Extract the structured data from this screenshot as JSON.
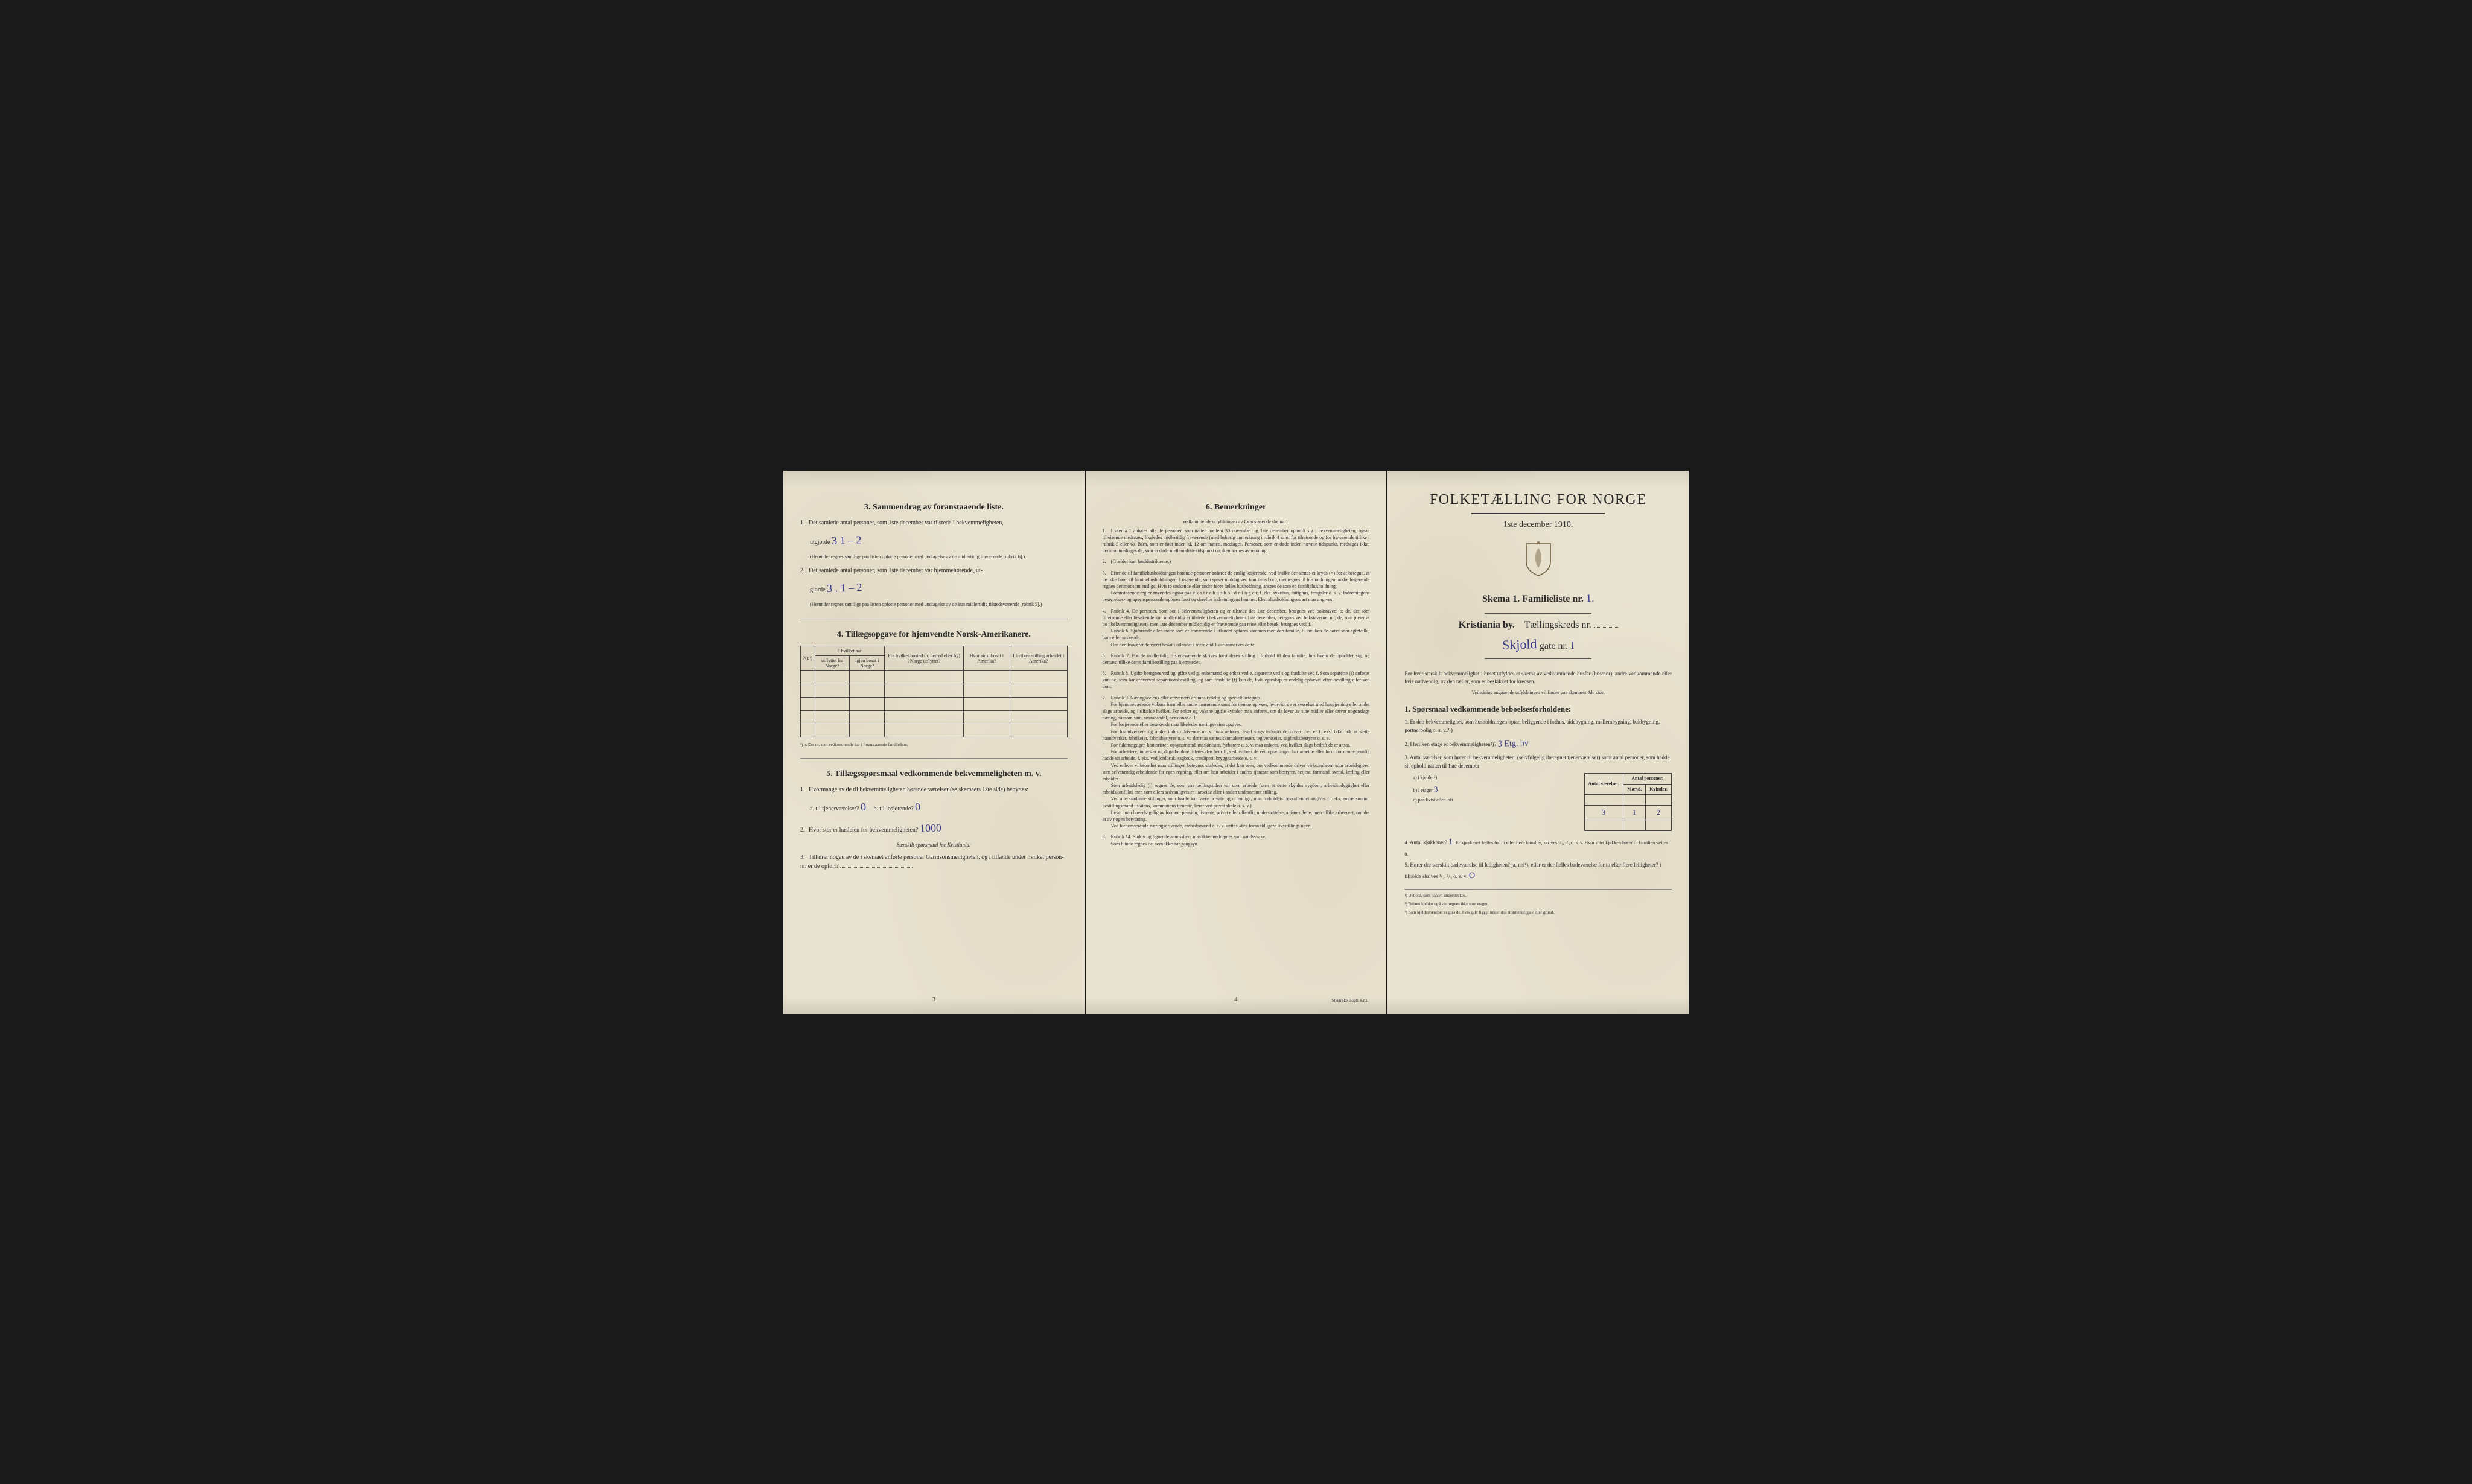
{
  "colors": {
    "paper": "#e8e2d0",
    "ink": "#2a2a2a",
    "handwriting": "#3a3a8a",
    "background": "#1a1a1a"
  },
  "page_left": {
    "section3": {
      "heading": "3.   Sammendrag av foranstaaende liste.",
      "q1": "Det samlede antal personer, som 1ste december var tilstede i bekvemmeligheten,",
      "q1_label": "utgjorde",
      "q1_value": "3        1 – 2",
      "q1_note": "(Herunder regnes samtlige paa listen opførte personer med undtagelse av de midlertidig fraværende [rubrik 6].)",
      "q2": "Det samlede antal personer, som 1ste december var hjemmehørende, ut-",
      "q2_label": "gjorde",
      "q2_value": "3 .        1 – 2",
      "q2_note": "(Herunder regnes samtlige paa listen opførte personer med undtagelse av de kun midlertidig tilstedeværende [rubrik 5].)"
    },
    "section4": {
      "heading": "4.   Tillægsopgave for hjemvendte Norsk-Amerikanere.",
      "cols": {
        "nr": "Nr.¹)",
        "group1": "I hvilket aar",
        "c1a": "utflyttet fra Norge?",
        "c1b": "igjen bosat i Norge?",
        "c2": "Fra hvilket bosted (ɔ: herred eller by) i Norge utflyttet?",
        "c3": "Hvor sidst bosat i Amerika?",
        "c4": "I hvilken stilling arbeidet i Amerika?"
      },
      "footnote": "¹) ɔ: Det nr. som vedkommende har i foranstaaende familieliste."
    },
    "section5": {
      "heading": "5.   Tillægsspørsmaal vedkommende bekvemmelig­heten m. v.",
      "q1": "Hvormange av de til bekvemmeligheten hørende værelser (se skemaets 1ste side) benyttes:",
      "q1a_label": "a. til tjenerværelser?",
      "q1a_value": "0",
      "q1b_label": "b. til losjerende?",
      "q1b_value": "0",
      "q2_label": "Hvor stor er husleien for bekvemmeligheten?",
      "q2_value": "1000",
      "sub_heading": "Særskilt spørsmaal for Kristiania:",
      "q3": "Tilhører nogen av de i skemaet anførte personer Garnisonsmenigheten, og i tilfælde under hvilket person-nr. er de opført?",
      "q3_value": ""
    },
    "page_number": "3"
  },
  "page_middle": {
    "heading": "6.   Bemerkninger",
    "subheading": "vedkommende utfyldningen av foranstaaende skema 1.",
    "items": [
      "I skema 1 anføres alle de personer, som natten mellem 30 november og 1ste december opholdt sig i bekvemmeligheten; ogsaa tilreisende medtages; likeledes midlertidig fraværende (med behørig anmerkning i rubrik 4 samt for tilreisende og for fraværende tillike i rubrik 5 eller 6). Barn, som er født inden kl. 12 om natten, medtages. Personer, som er døde inden nævnte tidspunkt, medtages ikke; derimot medtages de, som er døde mellem dette tidspunkt og skemaernes avhentning.",
      "(Gjælder kun landdistrikterne.)",
      "Efter de til familiehusholdningen hørende personer anføres de enslig losjerende, ved hvilke der sættes et kryds (×) for at betegne, at de ikke hører til familiehusholdningen. Losjerende, som spiser middag ved familiens bord, medregnes til husholdningen; andre losjerende regnes derimot som enslige. Hvis to søskende eller andre fører fælles husholdning, ansees de som en familiehusholdning.\n   Foranstaaende regler anvendes ogsaa paa e k s t r a h u s h o l d n i n g e r, f. eks. sykehus, fattighus, fængsler o. s. v. Indretningens bestyrelses- og opsynspersonale opføres først og derefter indretningens lemmer. Ekstrahusholdningens art maa angives.",
      "Rubrik 4. De personer, som bor i bekvemmeligheten og er tilstede der 1ste december, betegnes ved bokstaven: b; de, der som tilreisende eller besøkende kun midlertidig er tilstede i bekvemmeligheten 1ste december, betegnes ved bokstaverne: mt; de, som pleier at bo i bekvemmeligheten, men 1ste december midlertidig er fraværende paa reise eller besøk, betegnes ved: f.\n   Rubrik 6. Sjøfarende eller andre som er fraværende i utlandet opføres sammen med den familie, til hvilken de hører som egtefælle, barn eller søskende.\n   Har den fraværende været bosat i utlandet i mere end 1 aar anmerkes dette.",
      "Rubrik 7. For de midlertidig tilstedeværende skrives først deres stilling i forhold til den familie, hos hvem de opholder sig, og dernæst tillike deres familiestilling paa hjemstedet.",
      "Rubrik 8. Ugifte betegnes ved ug, gifte ved g, enkemænd og enker ved e, separerte ved s og fraskilte ved f. Som separerte (s) anføres kun de, som har erhvervet separationsbevilling, og som fraskilte (f) kun de, hvis egteskap er endelig ophævet efter bevilling eller ved dom.",
      "Rubrik 9. Næringsveiens eller erhvervets art maa tydelig og specielt betegnes.\n   For hjemmeværende voksne barn eller andre paarørende samt for tjenere oplyses, hvorvidt de er sysselsat med husgjerning eller andet slags arbeide, og i tilfælde hvilket. For enker og voksne ugifte kvinder maa anføres, om de lever av sine midler eller driver nogenslags næring, saasom søm, smaahandel, pensionat o. l.\n   For losjerende eller besøkende maa likeledes næringsveien opgives.\n   For haandverkere og andre industridrivende m. v. maa anføres, hvad slags industri de driver; det er f. eks. ikke nok at sætte haandverker, fabrikeier, fabrikbestyrer o. s. v.; der maa sættes skomakermester, teglverkseier, sagbruksbestyrer o. s. v.\n   For fuldmægtiger, kontorister, opsynsmænd, maskinister, fyrbøtere o. s. v. maa anføres, ved hvilket slags bedrift de er ansat.\n   For arbeidere, inderster og dagarbeidere tilføies den bedrift, ved hvilken de ved optællingen har arbeide eller forut for denne jevnlig hadde sit arbeide, f. eks. ved jordbruk, sagbruk, træsliperi, bryggearbeide o. s. v.\n   Ved enhver virksomhet maa stillingen betegnes saaledes, at det kan sees, om vedkommende driver virksomheten som arbeidsgiver, som selvstændig arbeidende for egen regning, eller om han arbeider i andres tjeneste som bestyrer, betjent, formand, svend, lærling eller arbeider.\n   Som arbeidsledig (l) regnes de, som paa tællingstiden var uten arbeide (uten at dette skyldes sygdom, arbeidsudygtighet eller arbeidskonflikt) men som ellers sedvanligvis er i arbeide eller i anden underordnet stilling.\n   Ved alle saadanne stillinger, som baade kan være private og offentlige, maa forholdets beskaffenhet angives (f. eks. embedsmand, bestillingsmand i statens, kommunens tjeneste, lærer ved privat skole o. s. v.).\n   Lever man hovedsagelig av formue, pension, livrente, privat eller offentlig understøttelse, anføres dette, men tillike erhvervet, om det er av nogen betydning.\n   Ved forhenværende næringsdrivende, embedsmænd o. s. v. sættes «fv» foran tidligere livsstillings navn.",
      "Rubrik 14. Sinker og lignende aandssløve maa ikke medregnes som aandssvake.\n   Som blinde regnes de, som ikke har gangsyn."
    ],
    "page_number": "4",
    "printer": "Steen'ske Bogtr.  Kr.a."
  },
  "page_right": {
    "title": "FOLKETÆLLING FOR NORGE",
    "date": "1ste december 1910.",
    "skema_label": "Skema 1.   Familieliste nr.",
    "skema_value": "1.",
    "city_label": "Kristiania by.",
    "kreds_label": "Tællingskreds nr.",
    "address_value": "Skjold",
    "address_suffix": "gate nr.",
    "address_num": "I",
    "intro": "For hver særskilt bekvemmelighet i huset utfyldes et skema av vedkommende husfar (husmor), andre vedkommende eller hvis nødvendig, av den tæller, som er beskikket for kredsen.",
    "intro_note": "Veiledning angaaende utfyldningen vil findes paa skemaets 4de side.",
    "s1_heading": "1. Spørsmaal vedkommende beboelsesforholdene:",
    "s1_q1": "Er den bekvemmelighet, som husholdningen optar, beliggende i forhus, sidebygning, mellembygning, bakbygning, portnerbolig o. s. v.?¹)",
    "s1_q2": "I hvilken etage er bekvemmeligheten²)?",
    "s1_q2_value": "3 Etg. hv",
    "s1_q3": "Antal værelser, som hører til bekvemmeligheten, (selvfølgelig iberegnet tjenerværelser) samt antal personer, som hadde sit ophold natten til 1ste december",
    "mini_table": {
      "h1": "Antal værelser.",
      "h2": "Antal personer.",
      "h2a": "Mænd.",
      "h2b": "Kvinder.",
      "rows": [
        {
          "label": "a) i kjelder³)",
          "v": "",
          "m": "",
          "k": ""
        },
        {
          "label": "b) i etager",
          "v": "3",
          "m": "1",
          "k": "2"
        },
        {
          "label": "c) paa kvist eller loft",
          "v": "",
          "m": "",
          "k": ""
        }
      ]
    },
    "s1_q4": "Antal kjøkkener?",
    "s1_q4_value": "1",
    "s1_q4_note": "Er kjøkkenet fælles for to eller flere familier, skrives ¹/₂, ¹/₃ o. s. v.  Hvor intet kjøkken hører til familien sættes 0.",
    "s1_q5": "Hører der særskilt badeværelse til leiligheten? ja, nei¹), eller er der fælles badeværelse for to eller flere leiligheter? i tilfælde skrives ¹/₂, ¹/₃ o. s. v.",
    "s1_q5_value": "O",
    "footnotes": [
      "¹) Det ord, som passer, understrekes.",
      "²) Beboet kjelder og kvist regnes ikke som etager.",
      "³) Som kjelderværelser regnes de, hvis gulv ligger under den tilstøtende gate eller grund."
    ]
  }
}
